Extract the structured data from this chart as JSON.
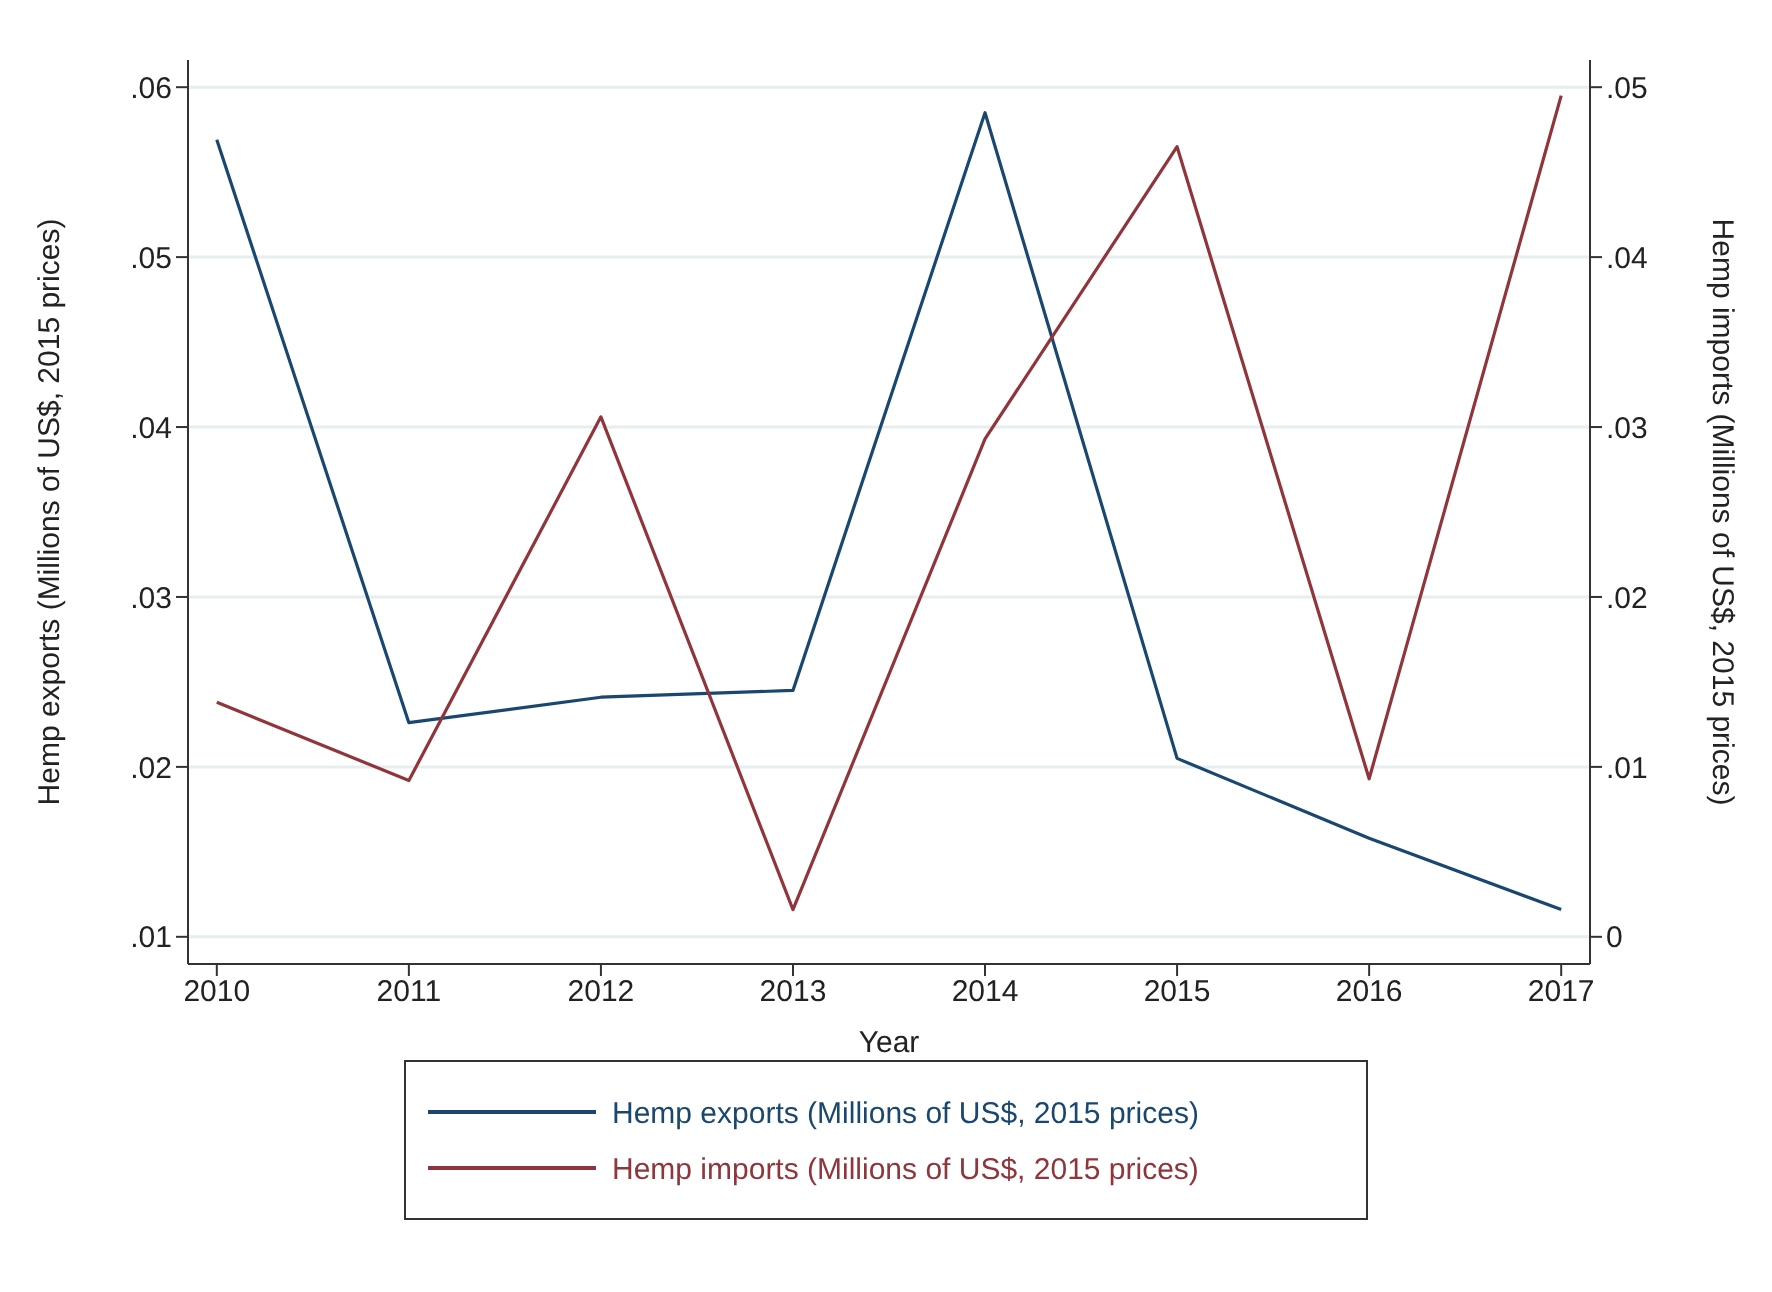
{
  "chart_data": {
    "type": "line",
    "xlabel": "Year",
    "ylabel": "Hemp exports (Millions of US$, 2015 prices)",
    "y2label": "Hemp imports (Millions of US$, 2015 prices)",
    "x": [
      2010,
      2011,
      2012,
      2013,
      2014,
      2015,
      2016,
      2017
    ],
    "xlim": [
      2009.85,
      2017.15
    ],
    "xticks": [
      2010,
      2011,
      2012,
      2013,
      2014,
      2015,
      2016,
      2017
    ],
    "ylim": [
      0.0084,
      0.0616
    ],
    "yticks": [
      {
        "value": 0.01,
        "label": ".01"
      },
      {
        "value": 0.02,
        "label": ".02"
      },
      {
        "value": 0.03,
        "label": ".03"
      },
      {
        "value": 0.04,
        "label": ".04"
      },
      {
        "value": 0.05,
        "label": ".05"
      },
      {
        "value": 0.06,
        "label": ".06"
      }
    ],
    "y2lim": [
      -0.0016,
      0.0516
    ],
    "y2ticks": [
      0,
      {
        "value": 0.01,
        "label": ".01"
      },
      {
        "value": 0.02,
        "label": ".02"
      },
      {
        "value": 0.03,
        "label": ".03"
      },
      {
        "value": 0.04,
        "label": ".04"
      },
      {
        "value": 0.05,
        "label": ".05"
      }
    ],
    "series": [
      {
        "name": "Hemp exports (Millions of US$, 2015 prices)",
        "color": "#1a476f",
        "values": [
          0.0569,
          0.0226,
          0.0241,
          0.0245,
          0.0585,
          0.0205,
          0.0158,
          0.0116
        ]
      },
      {
        "name": "Hemp imports (Millions of US$, 2015 prices)",
        "color": "#90353b",
        "axis": "y2",
        "values": [
          0.0138,
          0.0092,
          0.0306,
          0.0016,
          0.0293,
          0.0465,
          0.0093,
          0.0495
        ]
      }
    ],
    "grid": "y",
    "legend": "bottom",
    "marker": "none",
    "line_style": "solid"
  }
}
